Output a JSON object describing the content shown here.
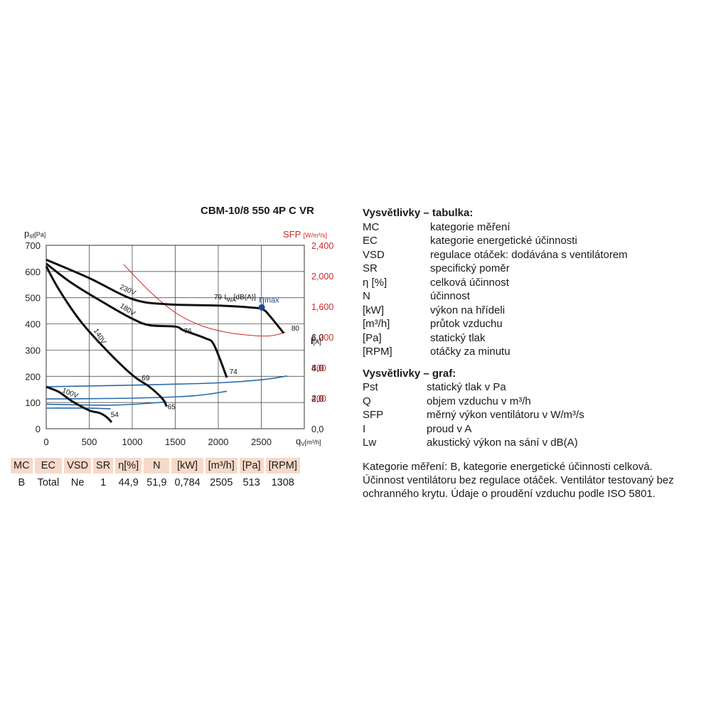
{
  "title": "CBM-10/8 550 4P C VR",
  "colors": {
    "pressure_curves": "#111111",
    "current_curves": "#2a6aa8",
    "sfp_curve": "#d02828",
    "sfp_axis": "#d02828",
    "table_header_bg": "#f7d9c9",
    "grid": "#333333"
  },
  "chart_data": {
    "type": "line",
    "grid": true,
    "x_axis": {
      "label": "q",
      "label_sub": "V",
      "label_unit": "[m³/h]",
      "range": [
        0,
        3000
      ],
      "ticks": [
        "0",
        "500",
        "1000",
        "1500",
        "2000",
        "2500"
      ]
    },
    "y_axis_left": {
      "label": "p",
      "label_sub": "sf",
      "label_unit": "[Pa]",
      "range": [
        0,
        700
      ],
      "ticks": [
        "0",
        "100",
        "200",
        "300",
        "400",
        "500",
        "600",
        "700"
      ]
    },
    "y_axis_right_sfp": {
      "label": "SFP",
      "label_unit": "[W/m³/s]",
      "range": [
        0,
        2400
      ],
      "ticks": [
        "400",
        "800",
        "1,200",
        "1,600",
        "2,000",
        "2,400"
      ]
    },
    "y_axis_right_current": {
      "label": "I",
      "label_unit": "[A]",
      "range": [
        0,
        12
      ],
      "ticks": [
        "0,0",
        "2,0",
        "4,0",
        "6,0"
      ]
    },
    "pressure_curves": [
      {
        "name": "230V",
        "points": [
          [
            0,
            645
          ],
          [
            500,
            575
          ],
          [
            1000,
            495
          ],
          [
            1400,
            475
          ],
          [
            2000,
            470
          ],
          [
            2400,
            462
          ],
          [
            2520,
            455
          ],
          [
            2600,
            430
          ],
          [
            2760,
            365
          ]
        ]
      },
      {
        "name": "180V",
        "points": [
          [
            0,
            630
          ],
          [
            300,
            555
          ],
          [
            700,
            475
          ],
          [
            1000,
            420
          ],
          [
            1200,
            395
          ],
          [
            1500,
            390
          ],
          [
            1600,
            375
          ],
          [
            1850,
            345
          ],
          [
            1950,
            320
          ],
          [
            2100,
            195
          ]
        ]
      },
      {
        "name": "140V",
        "points": [
          [
            0,
            620
          ],
          [
            150,
            530
          ],
          [
            400,
            410
          ],
          [
            700,
            300
          ],
          [
            1000,
            205
          ],
          [
            1200,
            160
          ],
          [
            1350,
            115
          ],
          [
            1400,
            85
          ]
        ]
      },
      {
        "name": "100V",
        "points": [
          [
            0,
            160
          ],
          [
            150,
            140
          ],
          [
            300,
            105
          ],
          [
            500,
            70
          ],
          [
            620,
            60
          ],
          [
            700,
            45
          ],
          [
            760,
            25
          ]
        ]
      }
    ],
    "curve_labels": [
      {
        "text": "230V",
        "x": 850,
        "y": 535
      },
      {
        "text": "180V",
        "x": 850,
        "y": 465
      },
      {
        "text": "140V",
        "x": 550,
        "y": 375
      },
      {
        "text": "100V",
        "x": 180,
        "y": 140
      }
    ],
    "noise_labels": [
      {
        "text": "79",
        "x": 1950,
        "y": 505
      },
      {
        "text": "L",
        "x": 2070,
        "y": 505
      },
      {
        "text": "WA",
        "x": 2100,
        "y": 495
      },
      {
        "text": "[dB(A)]",
        "x": 2180,
        "y": 505
      },
      {
        "text": "80",
        "x": 2850,
        "y": 385
      },
      {
        "text": "76",
        "x": 1600,
        "y": 375
      },
      {
        "text": "74",
        "x": 2130,
        "y": 220
      },
      {
        "text": "69",
        "x": 1110,
        "y": 195
      },
      {
        "text": "65",
        "x": 1410,
        "y": 85
      },
      {
        "text": "54",
        "x": 750,
        "y": 55
      }
    ],
    "eta_max": {
      "label": "η",
      "label_sub": "max",
      "x": 2505,
      "y": 463
    },
    "current_curves": [
      {
        "name": "I 230V",
        "points": [
          [
            0,
            2.75
          ],
          [
            1000,
            2.85
          ],
          [
            2000,
            3.0
          ],
          [
            2500,
            3.2
          ],
          [
            2800,
            3.45
          ]
        ]
      },
      {
        "name": "I 180V",
        "points": [
          [
            0,
            1.95
          ],
          [
            1000,
            2.0
          ],
          [
            1700,
            2.15
          ],
          [
            2100,
            2.45
          ]
        ]
      },
      {
        "name": "I 140V",
        "points": [
          [
            0,
            1.6
          ],
          [
            800,
            1.55
          ],
          [
            1400,
            1.75
          ]
        ]
      },
      {
        "name": "I 100V",
        "points": [
          [
            0,
            1.35
          ],
          [
            500,
            1.35
          ],
          [
            750,
            1.3
          ]
        ]
      }
    ],
    "sfp_curve": {
      "name": "SFP",
      "points": [
        [
          900,
          2150
        ],
        [
          1200,
          1800
        ],
        [
          1500,
          1520
        ],
        [
          1800,
          1350
        ],
        [
          2100,
          1260
        ],
        [
          2400,
          1220
        ],
        [
          2600,
          1215
        ],
        [
          2780,
          1260
        ]
      ]
    }
  },
  "spec_table": {
    "headers": [
      "MC",
      "EC",
      "VSD",
      "SR",
      "η[%]",
      "N",
      "[kW]",
      "[m³/h]",
      "[Pa]",
      "[RPM]"
    ],
    "values": [
      "B",
      "Total",
      "Ne",
      "1",
      "44,9",
      "51,9",
      "0,784",
      "2505",
      "513",
      "1308"
    ]
  },
  "legend": {
    "table_title": "Vysvětlivky – tabulka:",
    "table_items": [
      {
        "abbr": "MC",
        "text": "kategorie měření"
      },
      {
        "abbr": "EC",
        "text": "kategorie energetické účinnosti"
      },
      {
        "abbr": "VSD",
        "text": "regulace otáček: dodávána s ventilátorem"
      },
      {
        "abbr": "SR",
        "text": "specifický poměr"
      },
      {
        "abbr": "η [%]",
        "text": "celková účinnost"
      },
      {
        "abbr": "N",
        "text": "účinnost"
      },
      {
        "abbr": "[kW]",
        "text": "výkon na hřídeli"
      },
      {
        "abbr": "[m³/h]",
        "text": "průtok vzduchu"
      },
      {
        "abbr": "[Pa]",
        "text": "statický tlak"
      },
      {
        "abbr": "[RPM]",
        "text": "otáčky za minutu"
      }
    ],
    "graph_title": "Vysvětlivky – graf:",
    "graph_items": [
      {
        "abbr": "Pst",
        "text": "statický tlak v Pa"
      },
      {
        "abbr": "Q",
        "text": "objem vzduchu v m³/h"
      },
      {
        "abbr": "SFP",
        "text": "měrný výkon ventilátoru v W/m³/s"
      },
      {
        "abbr": "I",
        "text": "proud v A"
      },
      {
        "abbr": "Lw",
        "text": "akustický výkon na sání v dB(A)"
      }
    ],
    "note_1": "Kategorie měření: B, kategorie energetické účinnosti celková.",
    "note_2": "Účinnost ventilátoru bez regulace otáček. Ventilátor testovaný bez ochranného krytu. Údaje o proudění vzduchu podle ISO 5801."
  }
}
